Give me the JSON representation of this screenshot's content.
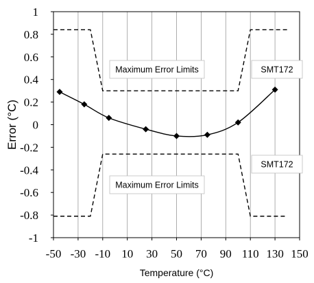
{
  "chart_data": {
    "type": "line",
    "xlabel": "Temperature (°C)",
    "ylabel": "Error (°C)",
    "xlim": [
      -50,
      150
    ],
    "ylim": [
      -1,
      1
    ],
    "x_ticks": [
      -50,
      -30,
      -10,
      10,
      30,
      50,
      70,
      90,
      110,
      130,
      150
    ],
    "y_ticks": [
      -1,
      -0.8,
      -0.6,
      -0.4,
      -0.2,
      0,
      0.2,
      0.4,
      0.6,
      0.8,
      1
    ],
    "grid": "vertical",
    "series": [
      {
        "name": "SMT172",
        "style": "solid-smooth-with-diamond-markers",
        "x": [
          -45,
          -25,
          -5,
          25,
          50,
          75,
          100,
          130
        ],
        "y": [
          0.29,
          0.18,
          0.06,
          -0.04,
          -0.1,
          -0.09,
          0.02,
          0.31
        ]
      },
      {
        "name": "Maximum Error Limits",
        "style": "dashed",
        "x": [
          -50,
          -20,
          -10,
          100,
          110,
          140
        ],
        "y": [
          0.84,
          0.84,
          0.3,
          0.3,
          0.84,
          0.84
        ]
      },
      {
        "name": "Maximum Error Limits",
        "style": "dashed",
        "x": [
          -50,
          -20,
          -10,
          100,
          110,
          140
        ],
        "y": [
          -0.81,
          -0.81,
          -0.26,
          -0.26,
          -0.81,
          -0.81
        ]
      }
    ],
    "annotations": [
      {
        "text": "Maximum Error Limits",
        "target": "upper"
      },
      {
        "text": "SMT172",
        "target": "upper"
      },
      {
        "text": "SMT172",
        "target": "lower"
      },
      {
        "text": "Maximum Error Limits",
        "target": "lower"
      }
    ],
    "colors": {
      "line": "#000000",
      "grid": "#999999",
      "box_border": "#bfbfbf"
    }
  }
}
